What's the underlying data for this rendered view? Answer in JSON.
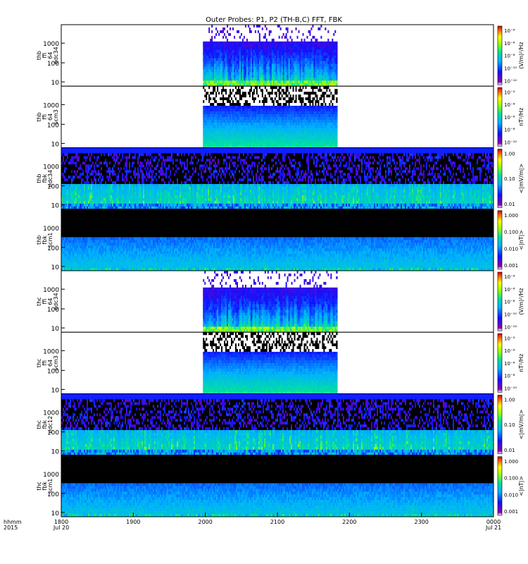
{
  "chart_data": {
    "type": "heatmap",
    "title": "Outer Probes: P1, P2 (TH-B,C) FFT, FBK",
    "x_axis": {
      "corner_label_top": "hhmm",
      "corner_label_bottom": "2015",
      "ticks": [
        {
          "value": "1800",
          "sub": "Jul 20"
        },
        {
          "value": "1900",
          "sub": ""
        },
        {
          "value": "2000",
          "sub": ""
        },
        {
          "value": "2100",
          "sub": ""
        },
        {
          "value": "2200",
          "sub": ""
        },
        {
          "value": "2300",
          "sub": ""
        },
        {
          "value": "0000",
          "sub": "Jul 21"
        }
      ]
    },
    "panels": [
      {
        "label": [
          "thb",
          "ffi",
          "64",
          "edc34"
        ],
        "kind": "fft",
        "y_ticks": [
          "1000",
          "100",
          "10"
        ],
        "colorbar_label": "(V/m)²/Hz",
        "colorbar_ticks": [
          "10⁻⁴",
          "10⁻⁶",
          "10⁻⁸",
          "10⁻¹⁰",
          "10⁻¹²"
        ],
        "data_interval": [
          "1958",
          "2150"
        ]
      },
      {
        "label": [
          "thb",
          "ffi",
          "64",
          "scm3"
        ],
        "kind": "fft_scm",
        "y_ticks": [
          "1000",
          "100",
          "10"
        ],
        "colorbar_label": "nT²/Hz",
        "colorbar_ticks": [
          "10⁻²",
          "10⁻⁴",
          "10⁻⁶",
          "10⁻⁸",
          "10⁻¹⁰"
        ],
        "data_interval": [
          "1958",
          "2150"
        ]
      },
      {
        "label": [
          "thb",
          "fbk",
          "edc34"
        ],
        "kind": "fbk_e",
        "y_ticks": [
          "1000",
          "100",
          "10"
        ],
        "colorbar_label": "<|mV/m|>",
        "colorbar_ticks": [
          "1.00",
          "0.10",
          "0.01"
        ],
        "data_interval": [
          "1800",
          "0000"
        ]
      },
      {
        "label": [
          "thb",
          "fbk",
          "scm1"
        ],
        "kind": "fbk_b",
        "y_ticks": [
          "1000",
          "100",
          "10"
        ],
        "colorbar_label": "<|nT|>",
        "colorbar_ticks": [
          "1.000",
          "0.100",
          "0.010",
          "0.001"
        ],
        "data_interval": [
          "1800",
          "0000"
        ]
      },
      {
        "label": [
          "thc",
          "ffi",
          "64",
          "edc34"
        ],
        "kind": "fft",
        "y_ticks": [
          "1000",
          "100",
          "10"
        ],
        "colorbar_label": "(V/m)²/Hz",
        "colorbar_ticks": [
          "10⁻⁴",
          "10⁻⁶",
          "10⁻⁸",
          "10⁻¹⁰",
          "10⁻¹²"
        ],
        "data_interval": [
          "1958",
          "2150"
        ]
      },
      {
        "label": [
          "thc",
          "ffi",
          "64",
          "scm3"
        ],
        "kind": "fft_scm",
        "y_ticks": [
          "1000",
          "100",
          "10"
        ],
        "colorbar_label": "nT²/Hz",
        "colorbar_ticks": [
          "10⁻²",
          "10⁻⁴",
          "10⁻⁶",
          "10⁻⁸",
          "10⁻¹⁰"
        ],
        "data_interval": [
          "1958",
          "2150"
        ]
      },
      {
        "label": [
          "thc",
          "fbk",
          "edc12"
        ],
        "kind": "fbk_e",
        "y_ticks": [
          "1000",
          "100",
          "10"
        ],
        "colorbar_label": "<|mV/m|>",
        "colorbar_ticks": [
          "1.00",
          "0.10",
          "0.01"
        ],
        "data_interval": [
          "1800",
          "0000"
        ]
      },
      {
        "label": [
          "thc",
          "fbk",
          "scm1"
        ],
        "kind": "fbk_b",
        "y_ticks": [
          "1000",
          "100",
          "10"
        ],
        "colorbar_label": "<|nT|>",
        "colorbar_ticks": [
          "1.000",
          "0.100",
          "0.010",
          "0.001"
        ],
        "data_interval": [
          "1800",
          "0000"
        ]
      }
    ]
  }
}
